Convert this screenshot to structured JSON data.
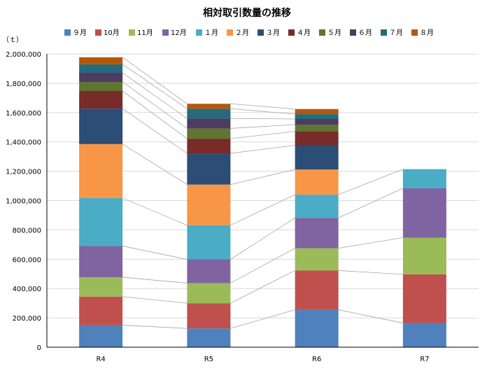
{
  "chart_data": {
    "type": "bar",
    "stacked": true,
    "title": "相対取引数量の推移",
    "ylabel": "（ｔ）",
    "xlabel": "",
    "categories": [
      "R4",
      "R5",
      "R6",
      "R7"
    ],
    "ylim": [
      0,
      2000000
    ],
    "yticks": [
      0,
      200000,
      400000,
      600000,
      800000,
      1000000,
      1200000,
      1400000,
      1600000,
      1800000,
      2000000
    ],
    "ytick_labels": [
      "0",
      "200,000",
      "400,000",
      "600,000",
      "800,000",
      "1,000,000",
      "1,200,000",
      "1,400,000",
      "1,600,000",
      "1,800,000",
      "2,000,000"
    ],
    "grid": true,
    "legend_position": "top",
    "series_lines": true,
    "series": [
      {
        "name": "９月",
        "color": "#4F81BD",
        "values": [
          150000,
          128000,
          255000,
          165000
        ]
      },
      {
        "name": "10月",
        "color": "#C0504D",
        "values": [
          195000,
          172000,
          268000,
          332000
        ]
      },
      {
        "name": "11月",
        "color": "#9BBB59",
        "values": [
          132000,
          137000,
          152000,
          250000
        ]
      },
      {
        "name": "12月",
        "color": "#8064A2",
        "values": [
          213000,
          162000,
          207000,
          337000
        ]
      },
      {
        "name": "１月",
        "color": "#4BACC6",
        "values": [
          327000,
          233000,
          158000,
          130000
        ]
      },
      {
        "name": "２月",
        "color": "#F79646",
        "values": [
          368000,
          277000,
          172000,
          null
        ]
      },
      {
        "name": "３月",
        "color": "#2C4D75",
        "values": [
          242000,
          213000,
          165000,
          null
        ]
      },
      {
        "name": "４月",
        "color": "#772C2A",
        "values": [
          120000,
          100000,
          95000,
          null
        ]
      },
      {
        "name": "５月",
        "color": "#5F7530",
        "values": [
          62000,
          70000,
          46000,
          null
        ]
      },
      {
        "name": "６月",
        "color": "#4D3B62",
        "values": [
          62000,
          68000,
          38000,
          null
        ]
      },
      {
        "name": "７月",
        "color": "#276A7C",
        "values": [
          58000,
          67000,
          33000,
          null
        ]
      },
      {
        "name": "８月",
        "color": "#B65708",
        "values": [
          48000,
          33000,
          35000,
          null
        ]
      }
    ]
  }
}
